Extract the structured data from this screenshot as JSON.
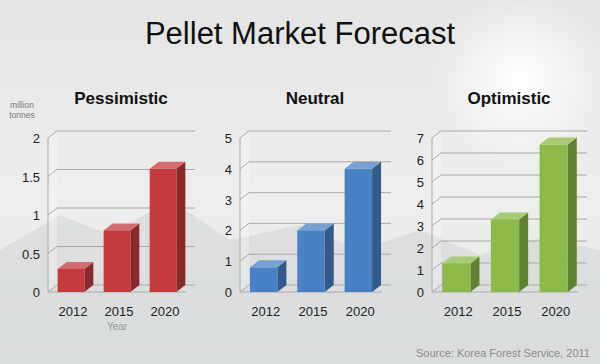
{
  "title": "Pellet Market Forecast",
  "source": "Source:  Korea Forest Service, 2011",
  "chart_data": [
    {
      "type": "bar",
      "title": "Pessimistic",
      "y_label": "million tonnes",
      "x_label": "Year",
      "categories": [
        "2012",
        "2015",
        "2020"
      ],
      "values": [
        0.3,
        0.8,
        1.6
      ],
      "color": "#c43b3d",
      "ylim": [
        0,
        2
      ],
      "yticks": [
        0,
        0.5,
        1,
        1.5,
        2
      ],
      "grid": true
    },
    {
      "type": "bar",
      "title": "Neutral",
      "categories": [
        "2012",
        "2015",
        "2020"
      ],
      "values": [
        0.8,
        2.0,
        4.0
      ],
      "color": "#4a80c4",
      "ylim": [
        0,
        5
      ],
      "yticks": [
        0,
        1,
        2,
        3,
        4,
        5
      ],
      "grid": true
    },
    {
      "type": "bar",
      "title": "Optimistic",
      "categories": [
        "2012",
        "2015",
        "2020"
      ],
      "values": [
        1.3,
        3.3,
        6.7
      ],
      "color": "#8cba48",
      "ylim": [
        0,
        7
      ],
      "yticks": [
        0,
        1,
        2,
        3,
        4,
        5,
        6,
        7
      ],
      "grid": true
    }
  ]
}
